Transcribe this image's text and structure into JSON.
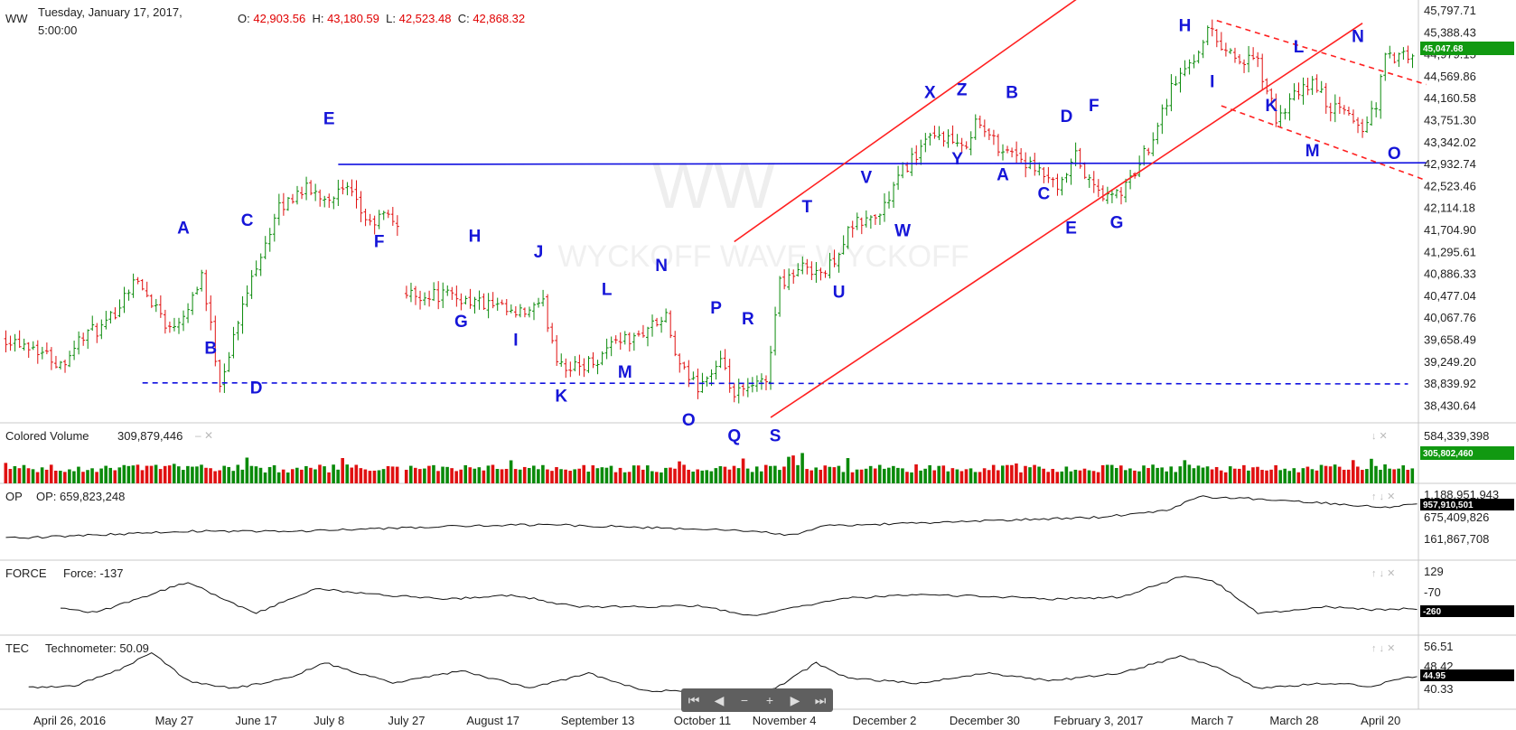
{
  "header": {
    "symbol": "WW",
    "date_line1": "Tuesday, January 17, 2017,",
    "date_line2": "5:00:00",
    "o_label": "O:",
    "o_value": "42,903.56",
    "h_label": "H:",
    "h_value": "43,180.59",
    "l_label": "L:",
    "l_value": "42,523.48",
    "c_label": "C:",
    "c_value": "42,868.32"
  },
  "watermark": {
    "big": "WW",
    "small": "WYCKOFF WAVE WYCKOFF"
  },
  "navigator": {
    "buttons": [
      "first",
      "prev",
      "zoom-out",
      "zoom-in",
      "next",
      "last"
    ]
  },
  "chart_data": [
    {
      "type": "ohlc",
      "panel": "price",
      "title": "",
      "y_ticks": [
        "45,797.71",
        "45,388.43",
        "44,979.15",
        "44,569.86",
        "44,160.58",
        "43,751.30",
        "43,342.02",
        "42,932.74",
        "42,523.46",
        "42,114.18",
        "41,704.90",
        "41,295.61",
        "40,886.33",
        "40,477.04",
        "40,067.76",
        "39,658.49",
        "39,249.20",
        "38,839.92",
        "38,430.64"
      ],
      "last_value_badge": "45,047.68",
      "x_ticks": [
        "April 26, 2016",
        "May 27",
        "June 17",
        "July 8",
        "July 27",
        "August 17",
        "September 13",
        "October 11",
        "November 4",
        "December 2",
        "December 30",
        "February 3, 2017",
        "March 7",
        "March 28",
        "April 20"
      ],
      "ylim": [
        38200,
        46000
      ],
      "close_path": [
        [
          0,
          39800
        ],
        [
          6,
          39650
        ],
        [
          12,
          39300
        ],
        [
          17,
          39850
        ],
        [
          22,
          40000
        ],
        [
          28,
          40900
        ],
        [
          33,
          40400
        ],
        [
          36,
          39950
        ],
        [
          40,
          40400
        ],
        [
          43,
          41000
        ],
        [
          47,
          38950
        ],
        [
          50,
          39800
        ],
        [
          55,
          41200
        ],
        [
          60,
          42200
        ],
        [
          65,
          42600
        ],
        [
          70,
          42450
        ],
        [
          75,
          42550
        ],
        [
          80,
          41900
        ],
        [
          83,
          42100
        ],
        [
          86,
          41950
        ],
        [
          88,
          40600
        ],
        [
          96,
          40600
        ],
        [
          102,
          40500
        ],
        [
          108,
          40350
        ],
        [
          112,
          40200
        ],
        [
          118,
          40400
        ],
        [
          121,
          39450
        ],
        [
          124,
          39200
        ],
        [
          130,
          39400
        ],
        [
          134,
          39800
        ],
        [
          138,
          39750
        ],
        [
          141,
          40000
        ],
        [
          145,
          40150
        ],
        [
          148,
          39200
        ],
        [
          152,
          38900
        ],
        [
          157,
          39300
        ],
        [
          160,
          38700
        ],
        [
          164,
          38850
        ],
        [
          167,
          39000
        ],
        [
          170,
          40850
        ],
        [
          176,
          41150
        ],
        [
          180,
          41000
        ],
        [
          186,
          41900
        ],
        [
          192,
          42100
        ],
        [
          197,
          42950
        ],
        [
          202,
          43450
        ],
        [
          206,
          43600
        ],
        [
          210,
          43300
        ],
        [
          213,
          43850
        ],
        [
          218,
          43400
        ],
        [
          222,
          43250
        ],
        [
          226,
          42900
        ],
        [
          229,
          42800
        ],
        [
          231,
          42500
        ],
        [
          235,
          43200
        ],
        [
          238,
          42700
        ],
        [
          242,
          42400
        ],
        [
          246,
          42600
        ],
        [
          251,
          43400
        ],
        [
          256,
          44500
        ],
        [
          261,
          45050
        ],
        [
          264,
          45600
        ],
        [
          267,
          45300
        ],
        [
          271,
          45000
        ],
        [
          275,
          44950
        ],
        [
          279,
          43900
        ],
        [
          283,
          44300
        ],
        [
          287,
          44600
        ],
        [
          291,
          44100
        ],
        [
          295,
          44000
        ],
        [
          298,
          43700
        ],
        [
          301,
          44200
        ],
        [
          303,
          45050
        ]
      ],
      "count": 310,
      "labels": [
        {
          "text": "A",
          "t": 39,
          "v": 41750
        },
        {
          "text": "B",
          "t": 45,
          "v": 39500
        },
        {
          "text": "C",
          "t": 53,
          "v": 41900
        },
        {
          "text": "D",
          "t": 55,
          "v": 38750
        },
        {
          "text": "E",
          "t": 71,
          "v": 43800
        },
        {
          "text": "F",
          "t": 82,
          "v": 41500
        },
        {
          "text": "H",
          "t": 103,
          "v": 41600
        },
        {
          "text": "G",
          "t": 100,
          "v": 40000
        },
        {
          "text": "J",
          "t": 117,
          "v": 41300
        },
        {
          "text": "I",
          "t": 112,
          "v": 39650
        },
        {
          "text": "K",
          "t": 122,
          "v": 38600
        },
        {
          "text": "L",
          "t": 132,
          "v": 40600
        },
        {
          "text": "M",
          "t": 136,
          "v": 39050
        },
        {
          "text": "N",
          "t": 144,
          "v": 41050
        },
        {
          "text": "O",
          "t": 150,
          "v": 38150
        },
        {
          "text": "P",
          "t": 156,
          "v": 40250
        },
        {
          "text": "Q",
          "t": 160,
          "v": 37850
        },
        {
          "text": "R",
          "t": 163,
          "v": 40050
        },
        {
          "text": "S",
          "t": 169,
          "v": 37850
        },
        {
          "text": "T",
          "t": 176,
          "v": 42150
        },
        {
          "text": "U",
          "t": 183,
          "v": 40550
        },
        {
          "text": "V",
          "t": 189,
          "v": 42700
        },
        {
          "text": "W",
          "t": 197,
          "v": 41700
        },
        {
          "text": "X",
          "t": 203,
          "v": 44300
        },
        {
          "text": "Y",
          "t": 209,
          "v": 43050
        },
        {
          "text": "Z",
          "t": 210,
          "v": 44350
        },
        {
          "text": "B",
          "t": 221,
          "v": 44300
        },
        {
          "text": "A",
          "t": 219,
          "v": 42750
        },
        {
          "text": "D",
          "t": 233,
          "v": 43850
        },
        {
          "text": "C",
          "t": 228,
          "v": 42400
        },
        {
          "text": "F",
          "t": 239,
          "v": 44050
        },
        {
          "text": "E",
          "t": 234,
          "v": 41750
        },
        {
          "text": "G",
          "t": 244,
          "v": 41850
        },
        {
          "text": "H",
          "t": 259,
          "v": 45550
        },
        {
          "text": "I",
          "t": 265,
          "v": 44500
        },
        {
          "text": "L",
          "t": 284,
          "v": 45150
        },
        {
          "text": "K",
          "t": 278,
          "v": 44050
        },
        {
          "text": "N",
          "t": 297,
          "v": 45350
        },
        {
          "text": "M",
          "t": 287,
          "v": 43200
        },
        {
          "text": "O",
          "t": 305,
          "v": 43150
        }
      ],
      "lines": [
        {
          "style": "solid",
          "color": "#1010e0",
          "from": [
            73,
            43050
          ],
          "to": [
            312,
            43080
          ]
        },
        {
          "style": "dashed",
          "color": "#1010e0",
          "from": [
            30,
            38950
          ],
          "to": [
            308,
            38930
          ]
        },
        {
          "style": "solid",
          "color": "#ff2020",
          "from": [
            160,
            41600
          ],
          "to": [
            236,
            46200
          ]
        },
        {
          "style": "solid",
          "color": "#ff2020",
          "from": [
            168,
            38300
          ],
          "to": [
            298,
            45700
          ]
        },
        {
          "style": "dashed",
          "color": "#ff2020",
          "from": [
            266,
            45750
          ],
          "to": [
            312,
            44550
          ]
        },
        {
          "style": "dashed",
          "color": "#ff2020",
          "from": [
            267,
            44150
          ],
          "to": [
            312,
            42750
          ]
        }
      ]
    },
    {
      "type": "bar",
      "panel": "volume",
      "title": "Colored Volume",
      "value_label": "309,879,446",
      "y_ticks": [
        "584,339,398"
      ],
      "last_value_badge": "305,802,460",
      "count": 310,
      "colors": {
        "up": "#0a8a0a",
        "down": "#e01010"
      }
    },
    {
      "type": "line",
      "panel": "op",
      "title": "OP",
      "value_label": "OP: 659,823,248",
      "y_ticks": [
        "1,188,951,943",
        "675,409,826",
        "161,867,708"
      ],
      "last_value_badge": "957,910,501",
      "ylim": [
        0,
        1300000000
      ],
      "path": [
        [
          0,
          330000000
        ],
        [
          20,
          400000000
        ],
        [
          40,
          480000000
        ],
        [
          60,
          470000000
        ],
        [
          80,
          520000000
        ],
        [
          100,
          580000000
        ],
        [
          118,
          610000000
        ],
        [
          135,
          570000000
        ],
        [
          150,
          520000000
        ],
        [
          165,
          480000000
        ],
        [
          172,
          390000000
        ],
        [
          180,
          580000000
        ],
        [
          200,
          640000000
        ],
        [
          220,
          700000000
        ],
        [
          240,
          760000000
        ],
        [
          255,
          900000000
        ],
        [
          262,
          1180000000
        ],
        [
          275,
          1130000000
        ],
        [
          290,
          1050000000
        ],
        [
          303,
          960000000
        ],
        [
          310,
          1050000000
        ]
      ]
    },
    {
      "type": "line",
      "panel": "force",
      "title": "FORCE",
      "value_label": "Force: -137",
      "y_ticks": [
        "129",
        "-70"
      ],
      "last_value_badge": "-260",
      "ylim": [
        -400,
        250
      ],
      "path": [
        [
          12,
          -180
        ],
        [
          20,
          -220
        ],
        [
          30,
          -60
        ],
        [
          40,
          100
        ],
        [
          47,
          -60
        ],
        [
          55,
          -230
        ],
        [
          68,
          30
        ],
        [
          80,
          -30
        ],
        [
          98,
          -80
        ],
        [
          112,
          -40
        ],
        [
          125,
          -160
        ],
        [
          140,
          -160
        ],
        [
          152,
          -150
        ],
        [
          165,
          -260
        ],
        [
          172,
          -180
        ],
        [
          185,
          -70
        ],
        [
          200,
          -40
        ],
        [
          215,
          -50
        ],
        [
          230,
          -80
        ],
        [
          245,
          -60
        ],
        [
          258,
          150
        ],
        [
          265,
          120
        ],
        [
          275,
          -230
        ],
        [
          290,
          -160
        ],
        [
          300,
          -190
        ],
        [
          310,
          -180
        ]
      ]
    },
    {
      "type": "line",
      "panel": "tec",
      "title": "TEC",
      "value_label": "Technometer: 50.09",
      "y_ticks": [
        "56.51",
        "48.42",
        "40.33"
      ],
      "last_value_badge": "44.95",
      "ylim": [
        36,
        60
      ],
      "path": [
        [
          5,
          42.5
        ],
        [
          15,
          43
        ],
        [
          25,
          49.5
        ],
        [
          32,
          56
        ],
        [
          40,
          45
        ],
        [
          50,
          42
        ],
        [
          62,
          46
        ],
        [
          70,
          52
        ],
        [
          85,
          44
        ],
        [
          100,
          49
        ],
        [
          115,
          42
        ],
        [
          128,
          48
        ],
        [
          140,
          41
        ],
        [
          155,
          41
        ],
        [
          165,
          40
        ],
        [
          170,
          43
        ],
        [
          178,
          52
        ],
        [
          185,
          46
        ],
        [
          200,
          44
        ],
        [
          215,
          48
        ],
        [
          230,
          45
        ],
        [
          245,
          48
        ],
        [
          258,
          54.5
        ],
        [
          265,
          51
        ],
        [
          275,
          42
        ],
        [
          290,
          44
        ],
        [
          300,
          43
        ],
        [
          310,
          47
        ]
      ]
    }
  ]
}
